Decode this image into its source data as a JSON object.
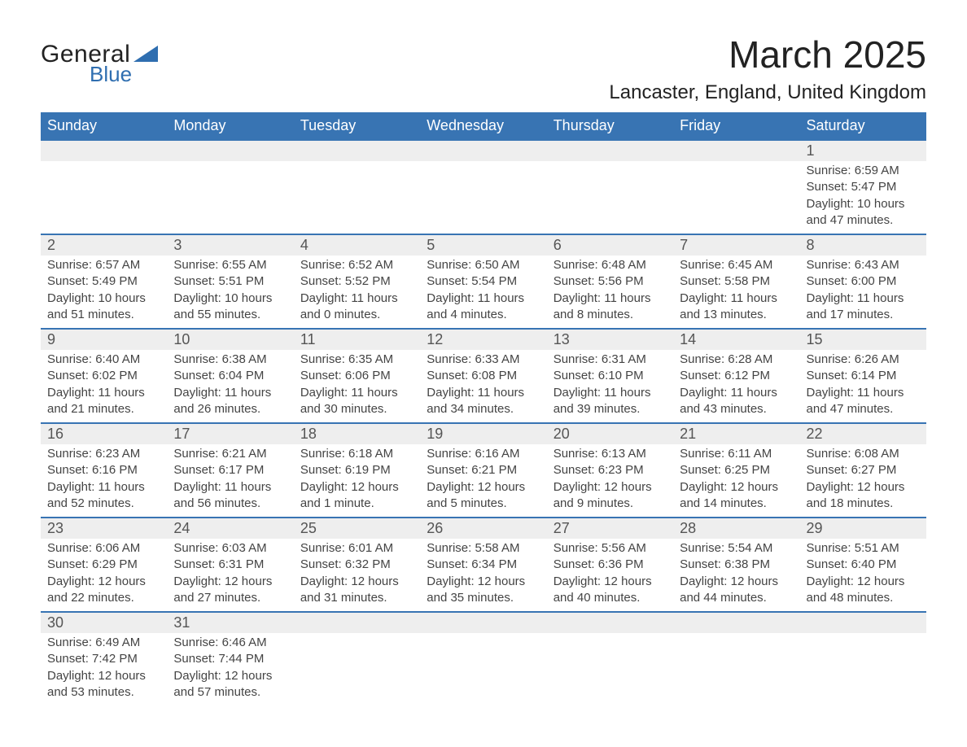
{
  "brand": {
    "name1": "General",
    "name2": "Blue",
    "shape_color": "#2f6eb0"
  },
  "title": "March 2025",
  "location": "Lancaster, England, United Kingdom",
  "colors": {
    "header_bg": "#3874b3",
    "header_text": "#ffffff",
    "daynum_bg": "#eeeeee",
    "row_divider": "#3874b3",
    "body_text": "#444444"
  },
  "weekdays": [
    "Sunday",
    "Monday",
    "Tuesday",
    "Wednesday",
    "Thursday",
    "Friday",
    "Saturday"
  ],
  "weeks": [
    [
      null,
      null,
      null,
      null,
      null,
      null,
      {
        "n": "1",
        "sunrise": "6:59 AM",
        "sunset": "5:47 PM",
        "daylight": "10 hours and 47 minutes."
      }
    ],
    [
      {
        "n": "2",
        "sunrise": "6:57 AM",
        "sunset": "5:49 PM",
        "daylight": "10 hours and 51 minutes."
      },
      {
        "n": "3",
        "sunrise": "6:55 AM",
        "sunset": "5:51 PM",
        "daylight": "10 hours and 55 minutes."
      },
      {
        "n": "4",
        "sunrise": "6:52 AM",
        "sunset": "5:52 PM",
        "daylight": "11 hours and 0 minutes."
      },
      {
        "n": "5",
        "sunrise": "6:50 AM",
        "sunset": "5:54 PM",
        "daylight": "11 hours and 4 minutes."
      },
      {
        "n": "6",
        "sunrise": "6:48 AM",
        "sunset": "5:56 PM",
        "daylight": "11 hours and 8 minutes."
      },
      {
        "n": "7",
        "sunrise": "6:45 AM",
        "sunset": "5:58 PM",
        "daylight": "11 hours and 13 minutes."
      },
      {
        "n": "8",
        "sunrise": "6:43 AM",
        "sunset": "6:00 PM",
        "daylight": "11 hours and 17 minutes."
      }
    ],
    [
      {
        "n": "9",
        "sunrise": "6:40 AM",
        "sunset": "6:02 PM",
        "daylight": "11 hours and 21 minutes."
      },
      {
        "n": "10",
        "sunrise": "6:38 AM",
        "sunset": "6:04 PM",
        "daylight": "11 hours and 26 minutes."
      },
      {
        "n": "11",
        "sunrise": "6:35 AM",
        "sunset": "6:06 PM",
        "daylight": "11 hours and 30 minutes."
      },
      {
        "n": "12",
        "sunrise": "6:33 AM",
        "sunset": "6:08 PM",
        "daylight": "11 hours and 34 minutes."
      },
      {
        "n": "13",
        "sunrise": "6:31 AM",
        "sunset": "6:10 PM",
        "daylight": "11 hours and 39 minutes."
      },
      {
        "n": "14",
        "sunrise": "6:28 AM",
        "sunset": "6:12 PM",
        "daylight": "11 hours and 43 minutes."
      },
      {
        "n": "15",
        "sunrise": "6:26 AM",
        "sunset": "6:14 PM",
        "daylight": "11 hours and 47 minutes."
      }
    ],
    [
      {
        "n": "16",
        "sunrise": "6:23 AM",
        "sunset": "6:16 PM",
        "daylight": "11 hours and 52 minutes."
      },
      {
        "n": "17",
        "sunrise": "6:21 AM",
        "sunset": "6:17 PM",
        "daylight": "11 hours and 56 minutes."
      },
      {
        "n": "18",
        "sunrise": "6:18 AM",
        "sunset": "6:19 PM",
        "daylight": "12 hours and 1 minute."
      },
      {
        "n": "19",
        "sunrise": "6:16 AM",
        "sunset": "6:21 PM",
        "daylight": "12 hours and 5 minutes."
      },
      {
        "n": "20",
        "sunrise": "6:13 AM",
        "sunset": "6:23 PM",
        "daylight": "12 hours and 9 minutes."
      },
      {
        "n": "21",
        "sunrise": "6:11 AM",
        "sunset": "6:25 PM",
        "daylight": "12 hours and 14 minutes."
      },
      {
        "n": "22",
        "sunrise": "6:08 AM",
        "sunset": "6:27 PM",
        "daylight": "12 hours and 18 minutes."
      }
    ],
    [
      {
        "n": "23",
        "sunrise": "6:06 AM",
        "sunset": "6:29 PM",
        "daylight": "12 hours and 22 minutes."
      },
      {
        "n": "24",
        "sunrise": "6:03 AM",
        "sunset": "6:31 PM",
        "daylight": "12 hours and 27 minutes."
      },
      {
        "n": "25",
        "sunrise": "6:01 AM",
        "sunset": "6:32 PM",
        "daylight": "12 hours and 31 minutes."
      },
      {
        "n": "26",
        "sunrise": "5:58 AM",
        "sunset": "6:34 PM",
        "daylight": "12 hours and 35 minutes."
      },
      {
        "n": "27",
        "sunrise": "5:56 AM",
        "sunset": "6:36 PM",
        "daylight": "12 hours and 40 minutes."
      },
      {
        "n": "28",
        "sunrise": "5:54 AM",
        "sunset": "6:38 PM",
        "daylight": "12 hours and 44 minutes."
      },
      {
        "n": "29",
        "sunrise": "5:51 AM",
        "sunset": "6:40 PM",
        "daylight": "12 hours and 48 minutes."
      }
    ],
    [
      {
        "n": "30",
        "sunrise": "6:49 AM",
        "sunset": "7:42 PM",
        "daylight": "12 hours and 53 minutes."
      },
      {
        "n": "31",
        "sunrise": "6:46 AM",
        "sunset": "7:44 PM",
        "daylight": "12 hours and 57 minutes."
      },
      null,
      null,
      null,
      null,
      null
    ]
  ],
  "labels": {
    "sunrise": "Sunrise:",
    "sunset": "Sunset:",
    "daylight": "Daylight:"
  }
}
